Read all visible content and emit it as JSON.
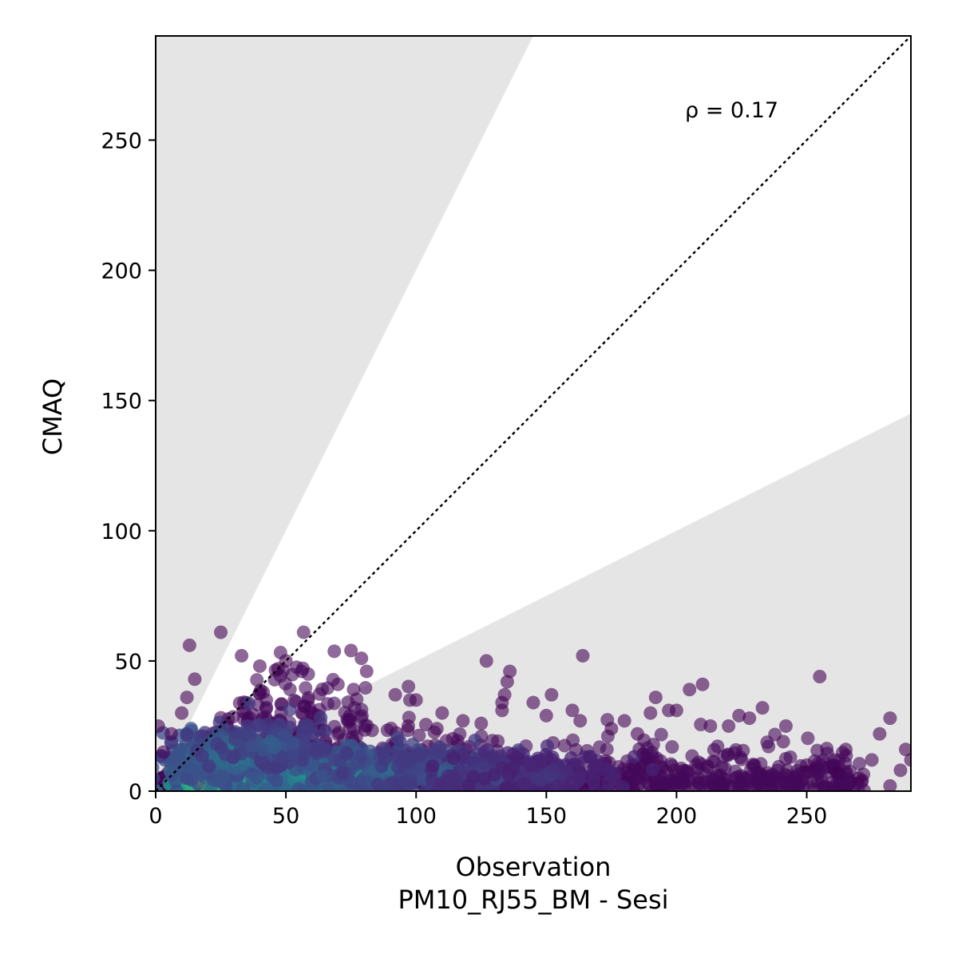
{
  "chart_data": {
    "type": "scatter",
    "xlabel": "Observation",
    "xlabel_sub": "PM10_RJ55_BM - Sesi",
    "ylabel": "CMAQ",
    "xlim": [
      0,
      290
    ],
    "ylim": [
      0,
      290
    ],
    "xticks": [
      0,
      50,
      100,
      150,
      200,
      250
    ],
    "yticks": [
      0,
      50,
      100,
      150,
      200,
      250
    ],
    "annotation": "ρ = 0.17",
    "reference_line": {
      "slope": 1,
      "style": "dotted",
      "color": "#000000"
    },
    "shaded_wedges": {
      "color": "#e5e5e5",
      "upper_slope": 2,
      "lower_slope": 0.5
    },
    "colormap": "viridis",
    "marker_alpha": 0.6,
    "grid": false,
    "dense_core": [
      {
        "x": 28,
        "y": 2,
        "density": 1.0
      },
      {
        "x": 35,
        "y": 3,
        "density": 0.95
      },
      {
        "x": 22,
        "y": 4,
        "density": 0.85
      },
      {
        "x": 40,
        "y": 6,
        "density": 0.7
      },
      {
        "x": 50,
        "y": 8,
        "density": 0.6
      },
      {
        "x": 60,
        "y": 6,
        "density": 0.55
      },
      {
        "x": 75,
        "y": 8,
        "density": 0.45
      },
      {
        "x": 90,
        "y": 7,
        "density": 0.35
      },
      {
        "x": 110,
        "y": 7,
        "density": 0.3
      },
      {
        "x": 130,
        "y": 6,
        "density": 0.22
      },
      {
        "x": 150,
        "y": 6,
        "density": 0.16
      },
      {
        "x": 18,
        "y": 12,
        "density": 0.4
      },
      {
        "x": 30,
        "y": 14,
        "density": 0.45
      },
      {
        "x": 45,
        "y": 18,
        "density": 0.3
      }
    ],
    "outliers": [
      {
        "x": 25,
        "y": 61
      },
      {
        "x": 13,
        "y": 56
      },
      {
        "x": 15,
        "y": 43
      },
      {
        "x": 33,
        "y": 52
      },
      {
        "x": 40,
        "y": 48
      },
      {
        "x": 47,
        "y": 47
      },
      {
        "x": 50,
        "y": 50
      },
      {
        "x": 75,
        "y": 54
      },
      {
        "x": 79,
        "y": 51
      },
      {
        "x": 81,
        "y": 46
      },
      {
        "x": 70,
        "y": 41
      },
      {
        "x": 76,
        "y": 39
      },
      {
        "x": 127,
        "y": 50
      },
      {
        "x": 136,
        "y": 46
      },
      {
        "x": 135,
        "y": 42
      },
      {
        "x": 134,
        "y": 37
      },
      {
        "x": 133,
        "y": 34
      },
      {
        "x": 133,
        "y": 31
      },
      {
        "x": 164,
        "y": 52
      },
      {
        "x": 145,
        "y": 34
      },
      {
        "x": 150,
        "y": 29
      },
      {
        "x": 152,
        "y": 37
      },
      {
        "x": 160,
        "y": 31
      },
      {
        "x": 163,
        "y": 27
      },
      {
        "x": 175,
        "y": 24
      },
      {
        "x": 192,
        "y": 36
      },
      {
        "x": 190,
        "y": 30
      },
      {
        "x": 197,
        "y": 31
      },
      {
        "x": 200,
        "y": 31
      },
      {
        "x": 205,
        "y": 39
      },
      {
        "x": 210,
        "y": 41
      },
      {
        "x": 213,
        "y": 25
      },
      {
        "x": 220,
        "y": 25
      },
      {
        "x": 224,
        "y": 29
      },
      {
        "x": 228,
        "y": 28
      },
      {
        "x": 233,
        "y": 32
      },
      {
        "x": 242,
        "y": 25
      },
      {
        "x": 241,
        "y": 19
      },
      {
        "x": 255,
        "y": 44
      },
      {
        "x": 265,
        "y": 16
      },
      {
        "x": 278,
        "y": 22
      },
      {
        "x": 282,
        "y": 28
      },
      {
        "x": 288,
        "y": 16
      },
      {
        "x": 286,
        "y": 8
      },
      {
        "x": 100,
        "y": 35
      },
      {
        "x": 92,
        "y": 37
      },
      {
        "x": 110,
        "y": 30
      },
      {
        "x": 118,
        "y": 27
      },
      {
        "x": 125,
        "y": 26
      },
      {
        "x": 108,
        "y": 24
      },
      {
        "x": 97,
        "y": 25
      },
      {
        "x": 180,
        "y": 27
      },
      {
        "x": 185,
        "y": 22
      },
      {
        "x": 250,
        "y": 10
      },
      {
        "x": 262,
        "y": 7
      },
      {
        "x": 270,
        "y": 5
      },
      {
        "x": 275,
        "y": 12
      },
      {
        "x": 282,
        "y": 2
      },
      {
        "x": 290,
        "y": 12
      },
      {
        "x": 1,
        "y": 25
      },
      {
        "x": 3,
        "y": 15
      },
      {
        "x": 6,
        "y": 22
      },
      {
        "x": 10,
        "y": 30
      },
      {
        "x": 12,
        "y": 36
      }
    ]
  }
}
